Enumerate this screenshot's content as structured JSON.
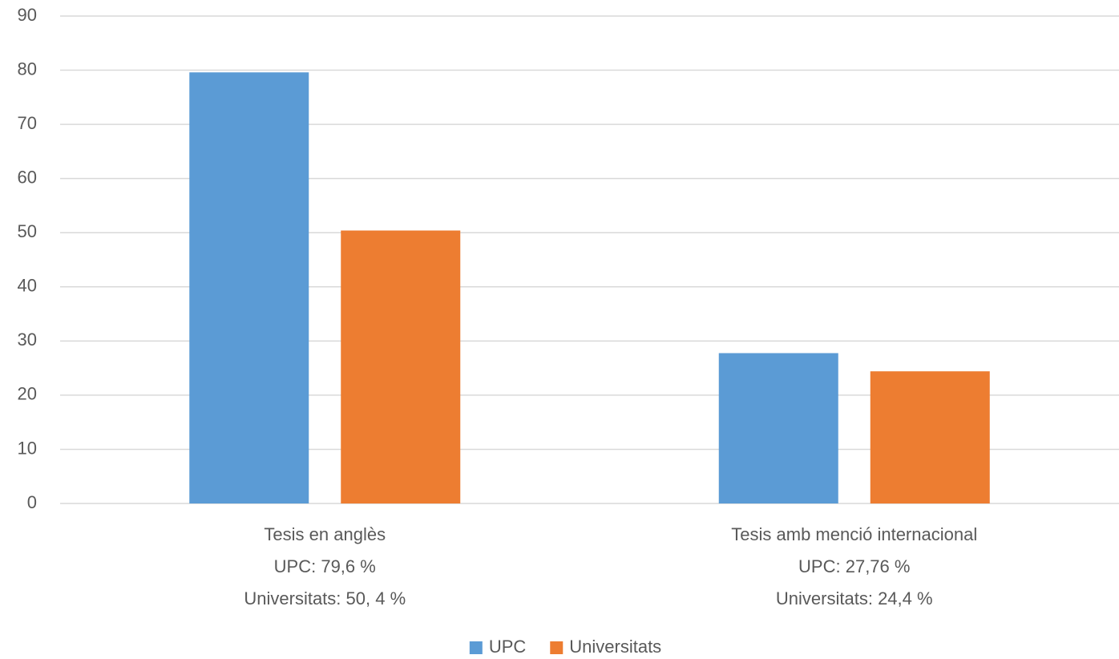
{
  "chart_data": {
    "type": "bar",
    "categories": [
      [
        "Tesis en anglès",
        "UPC: 79,6 %",
        "Universitats: 50, 4 %"
      ],
      [
        "Tesis amb menció internacional",
        "UPC: 27,76 %",
        "Universitats: 24,4 %"
      ]
    ],
    "series": [
      {
        "name": "UPC",
        "color": "#5b9bd5",
        "values": [
          79.6,
          27.76
        ]
      },
      {
        "name": "Universitats",
        "color": "#ed7d31",
        "values": [
          50.4,
          24.4
        ]
      }
    ],
    "ylim": [
      0,
      90
    ],
    "yticks": [
      0,
      10,
      20,
      30,
      40,
      50,
      60,
      70,
      80,
      90
    ],
    "grid": true,
    "legend": "bottom"
  }
}
